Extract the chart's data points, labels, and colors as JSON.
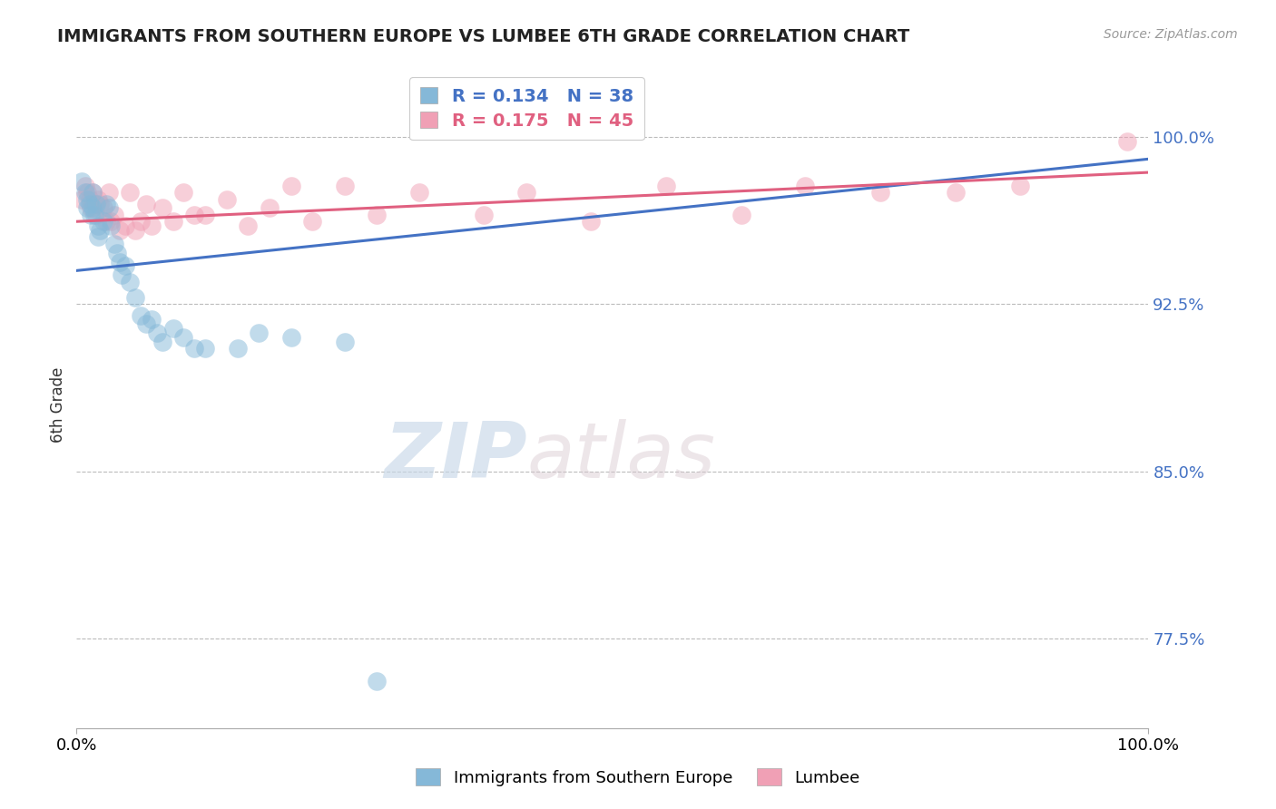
{
  "title": "IMMIGRANTS FROM SOUTHERN EUROPE VS LUMBEE 6TH GRADE CORRELATION CHART",
  "source_text": "Source: ZipAtlas.com",
  "ylabel": "6th Grade",
  "watermark_zip": "ZIP",
  "watermark_atlas": "atlas",
  "xlim": [
    0.0,
    1.0
  ],
  "ylim": [
    0.735,
    1.025
  ],
  "yticks": [
    0.775,
    0.85,
    0.925,
    1.0
  ],
  "ytick_labels": [
    "77.5%",
    "85.0%",
    "92.5%",
    "100.0%"
  ],
  "xtick_labels": [
    "0.0%",
    "100.0%"
  ],
  "xticks": [
    0.0,
    1.0
  ],
  "blue_R": 0.134,
  "blue_N": 38,
  "pink_R": 0.175,
  "pink_N": 45,
  "blue_color": "#85B8D8",
  "pink_color": "#F0A0B5",
  "blue_line_color": "#4472C4",
  "pink_line_color": "#E06080",
  "legend_label_blue": "Immigrants from Southern Europe",
  "legend_label_pink": "Lumbee",
  "blue_scatter_x": [
    0.005,
    0.008,
    0.01,
    0.01,
    0.012,
    0.013,
    0.015,
    0.015,
    0.017,
    0.018,
    0.02,
    0.02,
    0.022,
    0.025,
    0.028,
    0.03,
    0.032,
    0.035,
    0.038,
    0.04,
    0.042,
    0.045,
    0.05,
    0.055,
    0.06,
    0.065,
    0.07,
    0.075,
    0.08,
    0.09,
    0.1,
    0.11,
    0.12,
    0.15,
    0.17,
    0.2,
    0.25,
    0.28
  ],
  "blue_scatter_y": [
    0.98,
    0.975,
    0.968,
    0.972,
    0.97,
    0.965,
    0.975,
    0.968,
    0.965,
    0.97,
    0.96,
    0.955,
    0.958,
    0.962,
    0.97,
    0.968,
    0.96,
    0.952,
    0.948,
    0.944,
    0.938,
    0.942,
    0.935,
    0.928,
    0.92,
    0.916,
    0.918,
    0.912,
    0.908,
    0.914,
    0.91,
    0.905,
    0.905,
    0.905,
    0.912,
    0.91,
    0.908,
    0.756
  ],
  "pink_scatter_x": [
    0.005,
    0.008,
    0.01,
    0.012,
    0.013,
    0.015,
    0.017,
    0.018,
    0.02,
    0.022,
    0.025,
    0.028,
    0.03,
    0.032,
    0.035,
    0.04,
    0.045,
    0.05,
    0.055,
    0.06,
    0.065,
    0.07,
    0.08,
    0.09,
    0.1,
    0.11,
    0.12,
    0.14,
    0.16,
    0.18,
    0.2,
    0.22,
    0.25,
    0.28,
    0.32,
    0.38,
    0.42,
    0.48,
    0.55,
    0.62,
    0.68,
    0.75,
    0.82,
    0.88,
    0.98
  ],
  "pink_scatter_y": [
    0.972,
    0.978,
    0.975,
    0.972,
    0.968,
    0.975,
    0.97,
    0.965,
    0.972,
    0.97,
    0.968,
    0.962,
    0.975,
    0.962,
    0.965,
    0.958,
    0.96,
    0.975,
    0.958,
    0.962,
    0.97,
    0.96,
    0.968,
    0.962,
    0.975,
    0.965,
    0.965,
    0.972,
    0.96,
    0.968,
    0.978,
    0.962,
    0.978,
    0.965,
    0.975,
    0.965,
    0.975,
    0.962,
    0.978,
    0.965,
    0.978,
    0.975,
    0.975,
    0.978,
    0.998
  ],
  "blue_line_x0": 0.0,
  "blue_line_x1": 1.0,
  "blue_line_y0": 0.94,
  "blue_line_y1": 0.99,
  "pink_line_x0": 0.0,
  "pink_line_x1": 1.0,
  "pink_line_y0": 0.962,
  "pink_line_y1": 0.984
}
